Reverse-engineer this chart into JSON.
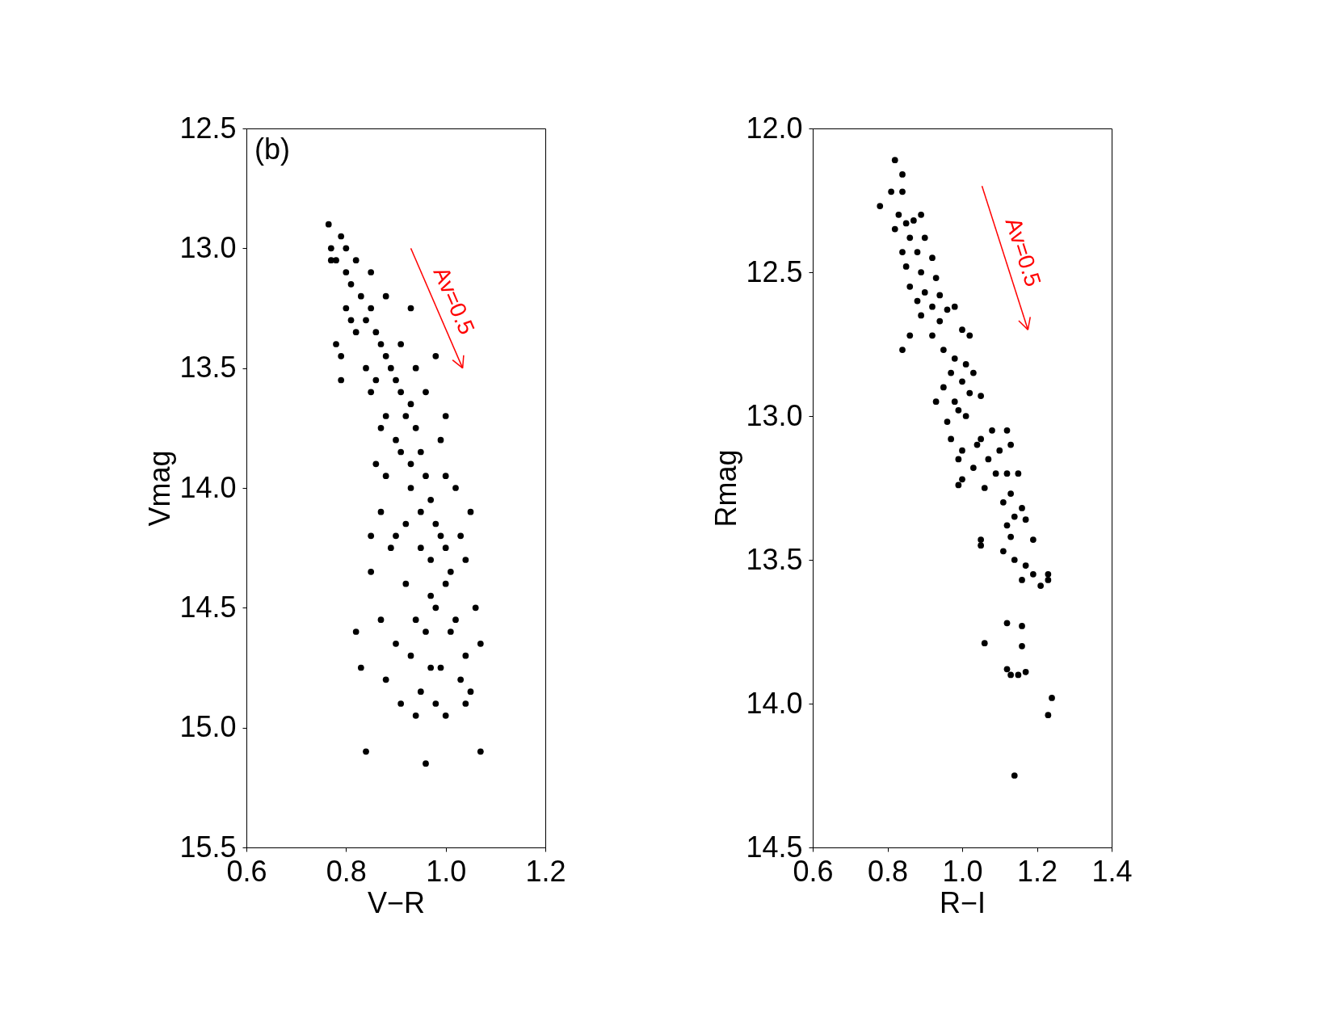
{
  "chart_data": [
    {
      "type": "scatter",
      "xlabel": "V−R",
      "ylabel": "Vmag",
      "grid": false,
      "xlim": [
        0.6,
        1.2
      ],
      "ylim": [
        15.5,
        12.5
      ],
      "xticks": [
        0.6,
        0.8,
        {
          "value": 1.0,
          "label": "1.0"
        },
        1.2
      ],
      "yticks": [
        12.5,
        {
          "value": 13,
          "label": "13.0"
        },
        13.5,
        {
          "value": 14,
          "label": "14.0"
        },
        14.5,
        {
          "value": 15,
          "label": "15.0"
        },
        15.5
      ],
      "annotations": [
        "(b)",
        {
          "text": "Av=0.5",
          "x": 0.982,
          "y": 13.25
        }
      ],
      "series": [
        {
          "marker": "circle",
          "color": "#000000",
          "x": [
            0.765,
            0.77,
            0.78,
            0.79,
            0.8,
            0.81,
            0.82,
            0.83,
            0.8,
            0.84,
            0.85,
            0.86,
            0.87,
            0.82,
            0.88,
            0.89,
            0.86,
            0.9,
            0.91,
            0.92,
            0.93,
            0.94,
            0.9,
            0.95,
            0.93,
            0.96,
            0.97,
            0.95,
            0.98,
            0.99,
            1.0,
            0.97,
            1.01,
            0.78,
            0.79,
            0.81,
            0.85,
            0.88,
            0.91,
            0.93,
            0.77,
            0.8,
            0.85,
            0.88,
            0.91,
            0.94,
            0.96,
            1.0,
            0.99,
            1.02,
            1.05,
            1.04,
            1.06,
            1.07,
            1.05,
            1.07,
            0.96,
            0.84,
            0.82,
            0.85,
            0.83,
            0.87,
            0.88,
            0.9,
            0.92,
            0.93,
            0.94,
            0.96,
            0.98,
            0.99,
            1.0,
            1.02,
            1.03,
            1.04,
            0.95,
            0.91,
            0.89,
            0.87,
            0.88,
            0.86,
            0.9,
            0.92,
            0.97,
            1.0,
            1.03,
            1.01,
            0.98,
            0.94,
            0.85,
            0.84,
            0.87,
            0.79,
            0.93,
            0.98,
            1.0,
            1.04,
            0.95,
            0.97
          ],
          "values": [
            12.9,
            13.0,
            13.05,
            12.95,
            13.1,
            13.15,
            13.05,
            13.2,
            13.25,
            13.3,
            13.25,
            13.35,
            13.4,
            13.35,
            13.45,
            13.5,
            13.55,
            13.55,
            13.6,
            13.7,
            13.65,
            13.75,
            13.8,
            13.85,
            13.9,
            13.95,
            14.05,
            14.1,
            14.15,
            14.2,
            14.25,
            14.3,
            14.35,
            13.4,
            13.45,
            13.3,
            13.6,
            13.7,
            13.85,
            14.0,
            13.05,
            13.0,
            13.1,
            13.2,
            13.4,
            13.5,
            13.6,
            13.7,
            13.8,
            14.0,
            14.1,
            14.3,
            14.5,
            14.65,
            14.85,
            15.1,
            15.15,
            15.1,
            14.6,
            14.35,
            14.75,
            14.55,
            14.8,
            14.65,
            14.4,
            14.7,
            14.95,
            14.6,
            14.5,
            14.75,
            14.95,
            14.55,
            14.8,
            14.9,
            14.85,
            14.9,
            14.25,
            14.1,
            13.95,
            13.9,
            14.2,
            14.15,
            14.45,
            14.4,
            14.2,
            14.6,
            14.9,
            14.55,
            14.2,
            13.5,
            13.75,
            13.55,
            13.25,
            13.45,
            13.95,
            14.7,
            14.25,
            14.75
          ]
        },
        {
          "type": "line",
          "color": "#ff0000",
          "x": [
            0.93,
            1.034
          ],
          "values": [
            13.0,
            13.5
          ]
        }
      ]
    },
    {
      "type": "scatter",
      "xlabel": "R−I",
      "ylabel": "Rmag",
      "grid": false,
      "xlim": [
        0.6,
        1.4
      ],
      "ylim": [
        14.5,
        12.0
      ],
      "xticks": [
        0.6,
        0.8,
        {
          "value": 1.0,
          "label": "1.0"
        },
        1.2,
        1.4
      ],
      "yticks": [
        {
          "value": 12,
          "label": "12.0"
        },
        12.5,
        {
          "value": 13,
          "label": "13.0"
        },
        13.5,
        {
          "value": 14,
          "label": "14.0"
        },
        14.5
      ],
      "annotations": [
        {
          "text": "Av=0.5",
          "x": 1.115,
          "y": 12.45
        }
      ],
      "series": [
        {
          "marker": "circle",
          "color": "#000000",
          "x": [
            0.82,
            0.84,
            0.81,
            0.78,
            0.84,
            0.83,
            0.85,
            0.87,
            0.89,
            0.82,
            0.86,
            0.9,
            0.84,
            0.88,
            0.92,
            0.85,
            0.89,
            0.93,
            0.86,
            0.9,
            0.94,
            0.88,
            0.92,
            0.96,
            0.98,
            0.89,
            0.94,
            0.86,
            0.92,
            0.84,
            0.95,
            1.0,
            1.02,
            0.98,
            1.01,
            0.97,
            1.03,
            1.0,
            0.95,
            1.02,
            0.98,
            1.05,
            0.93,
            0.99,
            1.01,
            0.96,
            1.08,
            1.12,
            1.05,
            0.97,
            1.0,
            1.04,
            1.1,
            1.13,
            0.99,
            1.07,
            1.03,
            1.12,
            1.09,
            1.15,
            1.0,
            0.99,
            1.06,
            1.13,
            1.11,
            1.16,
            1.14,
            1.17,
            1.12,
            1.13,
            1.19,
            1.05,
            1.05,
            1.11,
            1.14,
            1.17,
            1.19,
            1.23,
            1.16,
            1.21,
            1.23,
            1.12,
            1.16,
            1.16,
            1.06,
            1.12,
            1.13,
            1.15,
            1.17,
            1.24,
            1.23,
            1.14
          ],
          "values": [
            12.11,
            12.16,
            12.22,
            12.27,
            12.22,
            12.3,
            12.33,
            12.32,
            12.3,
            12.35,
            12.38,
            12.38,
            12.43,
            12.43,
            12.45,
            12.48,
            12.5,
            12.52,
            12.55,
            12.57,
            12.58,
            12.6,
            12.62,
            12.63,
            12.62,
            12.65,
            12.67,
            12.72,
            12.72,
            12.77,
            12.77,
            12.7,
            12.72,
            12.8,
            12.82,
            12.85,
            12.85,
            12.88,
            12.9,
            12.92,
            12.95,
            12.93,
            12.95,
            12.98,
            13.0,
            13.02,
            13.05,
            13.05,
            13.08,
            13.08,
            13.12,
            13.1,
            13.12,
            13.1,
            13.15,
            13.15,
            13.18,
            13.2,
            13.2,
            13.2,
            13.22,
            13.24,
            13.25,
            13.27,
            13.3,
            13.32,
            13.35,
            13.36,
            13.38,
            13.42,
            13.43,
            13.43,
            13.45,
            13.47,
            13.5,
            13.52,
            13.55,
            13.55,
            13.57,
            13.59,
            13.57,
            13.72,
            13.73,
            13.8,
            13.79,
            13.88,
            13.9,
            13.9,
            13.89,
            13.98,
            14.04,
            14.25
          ]
        },
        {
          "type": "line",
          "color": "#ff0000",
          "x": [
            1.053,
            1.176
          ],
          "values": [
            12.2,
            12.7
          ]
        }
      ]
    }
  ]
}
